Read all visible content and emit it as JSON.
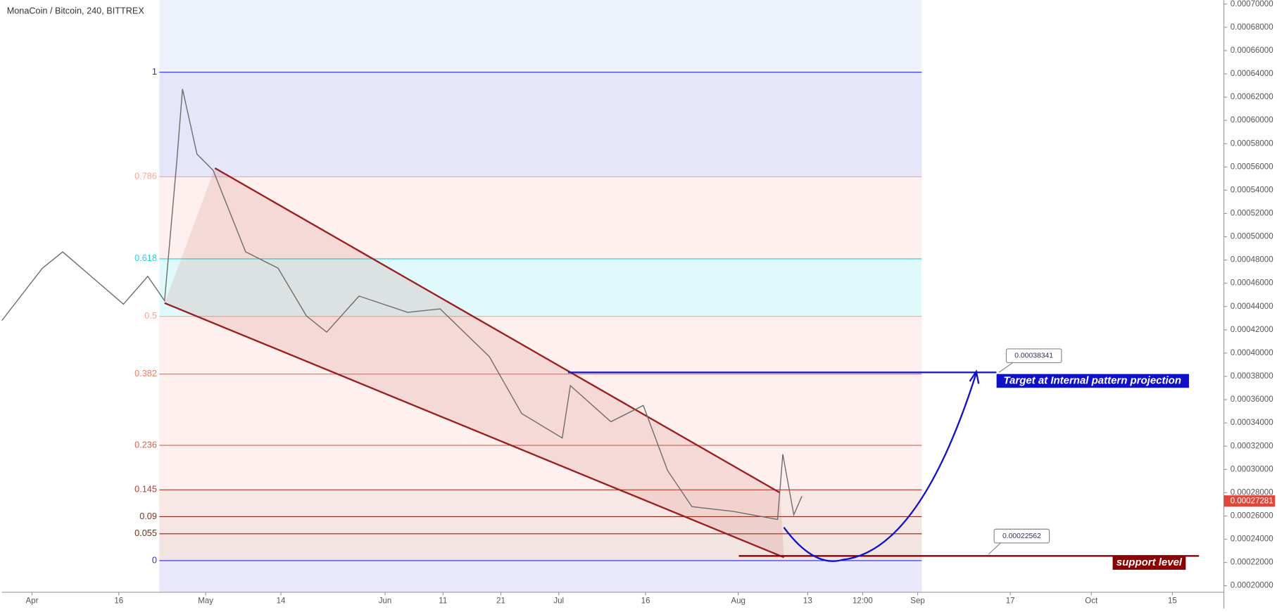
{
  "chart_data": {
    "type": "line",
    "title": "MonaCoin / Bitcoin, 240, BITTREX",
    "color": "#6b6b6b",
    "x": [
      -5.2,
      1.8,
      5.3,
      10.2,
      15.8,
      20,
      22.9,
      25,
      26,
      28.5,
      31.3,
      36.9,
      42.5,
      47.4,
      50.9,
      56.5,
      64.9,
      70.5,
      79,
      84.6,
      91.6,
      93,
      100,
      105.6,
      109.8,
      114,
      121,
      128.8,
      129.7,
      131.6,
      133
    ],
    "values": [
      0.000428,
      0.000473,
      0.000487,
      0.000466,
      0.000442,
      0.000466,
      0.000445,
      0.000564,
      0.000627,
      0.000571,
      0.000557,
      0.000487,
      0.000473,
      0.000432,
      0.000418,
      0.000449,
      0.000435,
      0.000438,
      0.000397,
      0.000348,
      0.000327,
      0.000372,
      0.000341,
      0.000355,
      0.000299,
      0.000268,
      0.000264,
      0.000257,
      0.000313,
      0.000261,
      0.000277
    ],
    "last_price": {
      "value": 0.00027281,
      "label": "0.00027281"
    },
    "xlim": [
      -5.19,
      205.9
    ],
    "xticks": [
      {
        "value": 0,
        "label": "Apr"
      },
      {
        "value": 15,
        "label": "16"
      },
      {
        "value": 30,
        "label": "May"
      },
      {
        "value": 43,
        "label": "14"
      },
      {
        "value": 61,
        "label": "Jun"
      },
      {
        "value": 71,
        "label": "11"
      },
      {
        "value": 81,
        "label": "21"
      },
      {
        "value": 91,
        "label": "Jul"
      },
      {
        "value": 106,
        "label": "16"
      },
      {
        "value": 122,
        "label": "Aug"
      },
      {
        "value": 134,
        "label": "13"
      },
      {
        "value": 143.5,
        "label": "12:00"
      },
      {
        "value": 153,
        "label": "Sep"
      },
      {
        "value": 169,
        "label": "17"
      },
      {
        "value": 183,
        "label": "Oct"
      },
      {
        "value": 197,
        "label": "15"
      }
    ],
    "ylim": [
      0.0001944,
      0.0007035
    ],
    "yticks": [
      {
        "value": 0.0002,
        "label": "0.00020000"
      },
      {
        "value": 0.00022,
        "label": "0.00022000"
      },
      {
        "value": 0.00024,
        "label": "0.00024000"
      },
      {
        "value": 0.00026,
        "label": "0.00026000"
      },
      {
        "value": 0.00028,
        "label": "0.00028000"
      },
      {
        "value": 0.0003,
        "label": "0.00030000"
      },
      {
        "value": 0.00032,
        "label": "0.00032000"
      },
      {
        "value": 0.00034,
        "label": "0.00034000"
      },
      {
        "value": 0.00036,
        "label": "0.00036000"
      },
      {
        "value": 0.00038,
        "label": "0.00038000"
      },
      {
        "value": 0.0004,
        "label": "0.00040000"
      },
      {
        "value": 0.00042,
        "label": "0.00042000"
      },
      {
        "value": 0.00044,
        "label": "0.00044000"
      },
      {
        "value": 0.00046,
        "label": "0.00046000"
      },
      {
        "value": 0.00048,
        "label": "0.00048000"
      },
      {
        "value": 0.0005,
        "label": "0.00050000"
      },
      {
        "value": 0.00052,
        "label": "0.00052000"
      },
      {
        "value": 0.00054,
        "label": "0.00054000"
      },
      {
        "value": 0.00056,
        "label": "0.00056000"
      },
      {
        "value": 0.00058,
        "label": "0.00058000"
      },
      {
        "value": 0.0006,
        "label": "0.00060000"
      },
      {
        "value": 0.00062,
        "label": "0.00062000"
      },
      {
        "value": 0.00064,
        "label": "0.00064000"
      },
      {
        "value": 0.00066,
        "label": "0.00066000"
      },
      {
        "value": 0.00068,
        "label": "0.00068000"
      },
      {
        "value": 0.0007,
        "label": "0.00070000"
      }
    ],
    "fib": {
      "x": [
        22,
        153.7
      ],
      "high": 0.0006414,
      "low": 0.0002216,
      "levels": [
        1,
        0.786,
        0.618,
        0.5,
        0.382,
        0.236,
        0.145,
        0.09,
        0.055,
        0
      ],
      "colors": [
        "#2a2ae0",
        "#f4a88f",
        "#26d0d8",
        "#f4a88f",
        "#e8805e",
        "#d9604a",
        "#b23a2a",
        "#8b2a1a",
        "#7a2a1a",
        "#2a2ae0"
      ],
      "fills": [
        "#e6e6fa",
        "#fdf0ee",
        "#e0fafb",
        "#fdf0ee",
        "#fdf0ee",
        "#fdf0ee",
        "#f8e8e5",
        "#f4e6e3",
        "#f2e4e1"
      ]
    },
    "channel": {
      "color": "#9b1c1c",
      "upper": {
        "x": [
          31.6,
          129.2
        ],
        "values": [
          0.000559,
          0.00028
        ]
      },
      "lower": {
        "x": [
          22.9,
          129.9
        ],
        "values": [
          0.000443,
          0.0002244
        ]
      }
    },
    "target": {
      "value": 0.00038341,
      "label": "0.00038341",
      "x": [
        92.6,
        166.6
      ],
      "text": "Target at Internal pattern projection",
      "color": "#1010c8"
    },
    "support": {
      "value": 0.00022562,
      "label": "0.00022562",
      "x": [
        122.1,
        201.6
      ],
      "text": "support level",
      "color": "#8b0000"
    }
  }
}
